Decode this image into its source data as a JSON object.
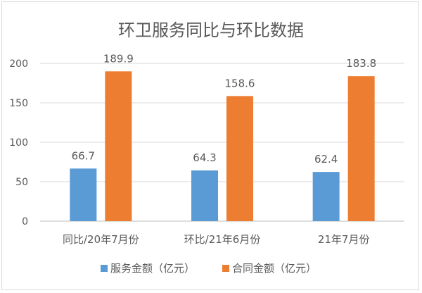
{
  "chart_data": {
    "type": "bar",
    "title": "环卫服务同比与环比数据",
    "categories": [
      "同比/20年7月份",
      "环比/21年6月份",
      "21年7月份"
    ],
    "series": [
      {
        "name": "服务金额（亿元）",
        "values": [
          66.7,
          64.3,
          62.4
        ],
        "labels": [
          "66.7",
          "64.3",
          "62.4"
        ],
        "color": "#5b9bd5"
      },
      {
        "name": "合同金额（亿元）",
        "values": [
          189.9,
          158.6,
          183.8
        ],
        "labels": [
          "189.9",
          "158.6",
          "183.8"
        ],
        "color": "#ed7d31"
      }
    ],
    "ylim": [
      0,
      200
    ],
    "yticks": [
      0,
      50,
      100,
      150,
      200
    ],
    "ytick_labels": [
      "0",
      "50",
      "100",
      "150",
      "200"
    ],
    "grid": true,
    "legend": "bottom",
    "grid_color": "#d9d9d9",
    "axis_color": "#bfbfbf"
  }
}
